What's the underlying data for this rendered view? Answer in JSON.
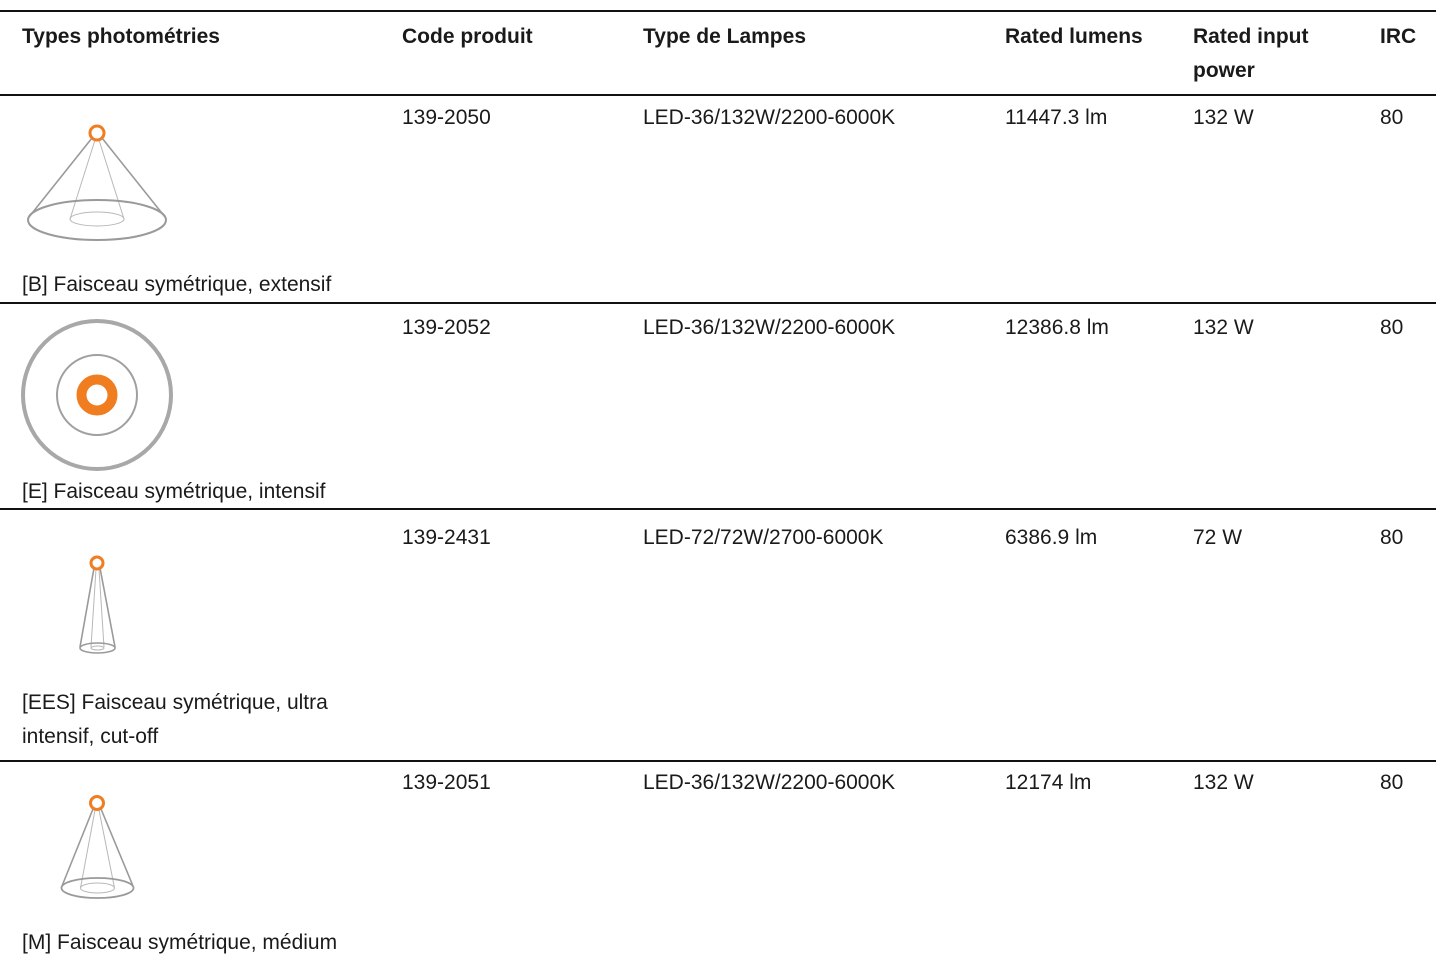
{
  "table": {
    "headers": {
      "photometry": "Types photométries",
      "code": "Code produit",
      "lamp": "Type de Lampes",
      "lumens": "Rated lumens",
      "power": "Rated input power",
      "irc": "IRC"
    },
    "rows": [
      {
        "icon": "symmetric-extensive-beam-icon",
        "photometry": "[B] Faisceau symétrique, extensif",
        "code": "139-2050",
        "lamp": "LED-36/132W/2200-6000K",
        "lumens": "11447.3 lm",
        "power": "132 W",
        "irc": "80"
      },
      {
        "icon": "symmetric-intensive-beam-top-view-icon",
        "photometry": "[E] Faisceau symétrique, intensif",
        "code": "139-2052",
        "lamp": "LED-36/132W/2200-6000K",
        "lumens": "12386.8 lm",
        "power": "132 W",
        "irc": "80"
      },
      {
        "icon": "symmetric-ultra-intensive-cutoff-beam-icon",
        "photometry": "[EES] Faisceau symétrique, ultra intensif, cut-off",
        "code": "139-2431",
        "lamp": "LED-72/72W/2700-6000K",
        "lumens": "6386.9 lm",
        "power": "72 W",
        "irc": "80"
      },
      {
        "icon": "symmetric-medium-beam-icon",
        "photometry": "[M] Faisceau symétrique, médium",
        "code": "139-2051",
        "lamp": "LED-36/132W/2200-6000K",
        "lumens": "12174 lm",
        "power": "132 W",
        "irc": "80"
      }
    ]
  },
  "colors": {
    "text": "#1a1a1a",
    "rule": "#111111",
    "light_source": "#F07D1F",
    "beam_outline": "#9a9a9a"
  }
}
